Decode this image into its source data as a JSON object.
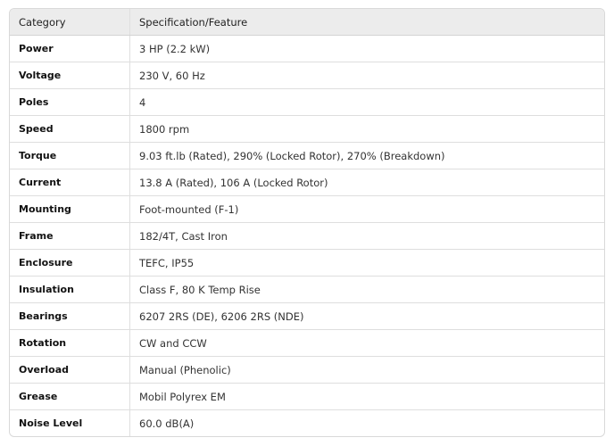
{
  "table": {
    "headers": [
      "Category",
      "Specification/Feature"
    ],
    "rows": [
      [
        "Power",
        "3 HP (2.2 kW)"
      ],
      [
        "Voltage",
        "230 V, 60 Hz"
      ],
      [
        "Poles",
        "4"
      ],
      [
        "Speed",
        "1800 rpm"
      ],
      [
        "Torque",
        "9.03 ft.lb (Rated), 290% (Locked Rotor), 270% (Breakdown)"
      ],
      [
        "Current",
        "13.8 A (Rated), 106 A (Locked Rotor)"
      ],
      [
        "Mounting",
        "Foot-mounted (F-1)"
      ],
      [
        "Frame",
        "182/4T, Cast Iron"
      ],
      [
        "Enclosure",
        "TEFC, IP55"
      ],
      [
        "Insulation",
        "Class F, 80 K Temp Rise"
      ],
      [
        "Bearings",
        "6207 2RS (DE), 6206 2RS (NDE)"
      ],
      [
        "Rotation",
        "CW and CCW"
      ],
      [
        "Overload",
        "Manual (Phenolic)"
      ],
      [
        "Grease",
        "Mobil Polyrex EM"
      ],
      [
        "Noise Level",
        "60.0 dB(A)"
      ]
    ]
  }
}
